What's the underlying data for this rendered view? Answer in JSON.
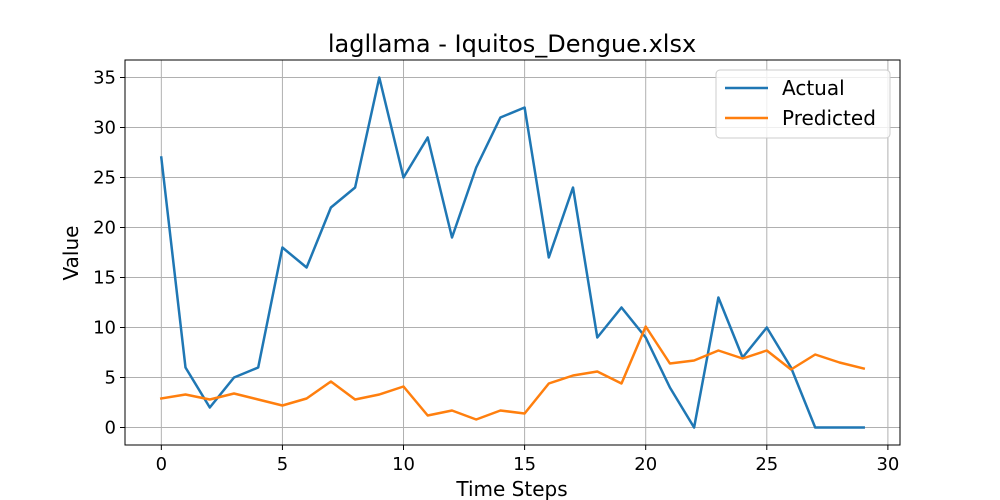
{
  "chart_data": {
    "type": "line",
    "title": "lagllama - Iquitos_Dengue.xlsx",
    "xlabel": "Time Steps",
    "ylabel": "Value",
    "xlim": [
      -1.5,
      30.5
    ],
    "ylim": [
      -1.75,
      36.75
    ],
    "xticks": [
      0,
      5,
      10,
      15,
      20,
      25,
      30
    ],
    "yticks": [
      0,
      5,
      10,
      15,
      20,
      25,
      30,
      35
    ],
    "grid": true,
    "legend": "top-right",
    "x": [
      0,
      1,
      2,
      3,
      4,
      5,
      6,
      7,
      8,
      9,
      10,
      11,
      12,
      13,
      14,
      15,
      16,
      17,
      18,
      19,
      20,
      21,
      22,
      23,
      24,
      25,
      26,
      27,
      28,
      29
    ],
    "series": [
      {
        "name": "Actual",
        "color": "#1f77b4",
        "values": [
          27,
          6,
          2,
          5,
          6,
          18,
          16,
          22,
          24,
          35,
          25,
          29,
          19,
          26,
          31,
          32,
          17,
          24,
          9,
          12,
          9,
          4,
          0,
          13,
          7,
          10,
          6,
          0,
          0,
          0
        ]
      },
      {
        "name": "Predicted",
        "color": "#ff7f0e",
        "values": [
          2.9,
          3.3,
          2.8,
          3.4,
          2.8,
          2.2,
          2.9,
          4.6,
          2.8,
          3.3,
          4.1,
          1.2,
          1.7,
          0.8,
          1.7,
          1.4,
          4.4,
          5.2,
          5.6,
          4.4,
          10.1,
          6.4,
          6.7,
          7.7,
          6.9,
          7.7,
          5.8,
          7.3,
          6.5,
          5.9
        ]
      }
    ]
  }
}
